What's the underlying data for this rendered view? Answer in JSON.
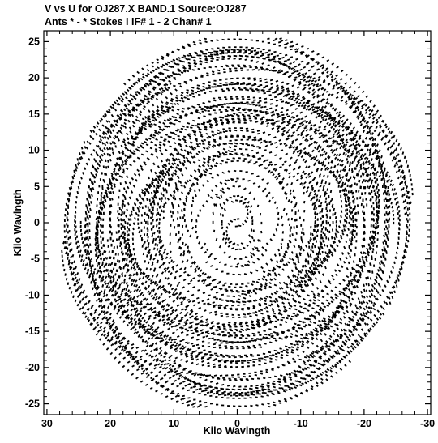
{
  "header": {
    "line1": "V vs U for OJ287.X BAND.1   Source:OJ287",
    "line2": "Ants * - *     Stokes I  IF# 1 - 2  Chan# 1"
  },
  "chart_data": {
    "type": "scatter",
    "title": "V vs U for OJ287.X BAND.1   Source:OJ287",
    "subtitle": "Ants * - *     Stokes I  IF# 1 - 2  Chan# 1",
    "xlabel": "Kilo Wavlngth",
    "ylabel": "Kilo Wavlngth",
    "xlim": [
      30.5,
      -30.5
    ],
    "ylim": [
      -26.5,
      26.5
    ],
    "x_reversed": true,
    "x_ticks": [
      30,
      20,
      10,
      0,
      -10,
      -20,
      -30
    ],
    "x_tick_labels": [
      "30",
      "20",
      "10",
      "0",
      "-10",
      "-20",
      "-30"
    ],
    "y_ticks": [
      25,
      20,
      15,
      10,
      5,
      0,
      -5,
      -10,
      -15,
      -20,
      -25
    ],
    "y_tick_labels": [
      "25",
      "20",
      "15",
      "10",
      "5",
      "0",
      "-5",
      "-10",
      "-15",
      "-20",
      "-25"
    ],
    "grid": false,
    "legend": "none",
    "point_color": "#000000",
    "uv_coverage": {
      "description_of_shape": "symmetric elliptical uv tracks centered at origin",
      "max_abs_u": 29.5,
      "max_abs_v": 25.5,
      "central_hole_radius": 0.5
    }
  }
}
